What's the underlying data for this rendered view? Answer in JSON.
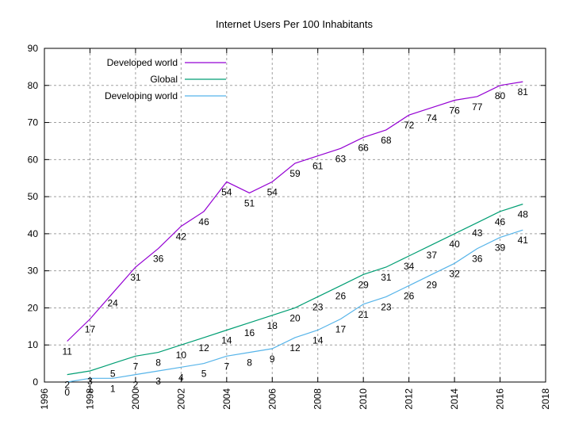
{
  "chart_data": {
    "type": "line",
    "title": "Internet Users Per 100 Inhabitants",
    "xlabel": "",
    "ylabel": "",
    "xlim": [
      1996,
      2018
    ],
    "ylim": [
      0,
      90
    ],
    "x_ticks": [
      1996,
      1998,
      2000,
      2002,
      2004,
      2006,
      2008,
      2010,
      2012,
      2014,
      2016,
      2018
    ],
    "y_ticks": [
      0,
      10,
      20,
      30,
      40,
      50,
      60,
      70,
      80,
      90
    ],
    "grid": true,
    "legend_position": "top-left",
    "x": [
      1997,
      1998,
      1999,
      2000,
      2001,
      2002,
      2003,
      2004,
      2005,
      2006,
      2007,
      2008,
      2009,
      2010,
      2011,
      2012,
      2013,
      2014,
      2015,
      2016,
      2017
    ],
    "series": [
      {
        "name": "Developed world",
        "color": "#9400d3",
        "values": [
          11,
          17,
          24,
          31,
          36,
          42,
          46,
          54,
          51,
          54,
          59,
          61,
          63,
          66,
          68,
          72,
          74,
          76,
          77,
          80,
          81
        ],
        "labels": [
          "11",
          "17",
          "24",
          "31",
          "36",
          "42",
          "46",
          "54",
          "51",
          "54",
          "59",
          "61",
          "63",
          "66",
          "68",
          "72",
          "74",
          "76",
          "77",
          "80",
          "81"
        ]
      },
      {
        "name": "Global",
        "color": "#009e73",
        "values": [
          2,
          3,
          5,
          7,
          8,
          10,
          12,
          14,
          16,
          18,
          20,
          23,
          26,
          29,
          31,
          34,
          37,
          40,
          43,
          46,
          48
        ],
        "labels": [
          "2",
          "3",
          "5",
          "7",
          "8",
          "10",
          "12",
          "14",
          "16",
          "18",
          "20",
          "23",
          "26",
          "29",
          "31",
          "34",
          "37",
          "40",
          "43",
          "46",
          "48"
        ]
      },
      {
        "name": "Developing world",
        "color": "#56b4e9",
        "values": [
          0,
          1,
          1,
          2,
          3,
          4,
          5,
          7,
          8,
          9,
          12,
          14,
          17,
          21,
          23,
          26,
          29,
          32,
          36,
          39,
          41
        ],
        "labels": [
          "0",
          "1",
          "1",
          "2",
          "3",
          "4",
          "5",
          "7",
          "8",
          "9",
          "12",
          "14",
          "17",
          "21",
          "23",
          "26",
          "29",
          "32",
          "36",
          "39",
          "41"
        ]
      }
    ]
  }
}
